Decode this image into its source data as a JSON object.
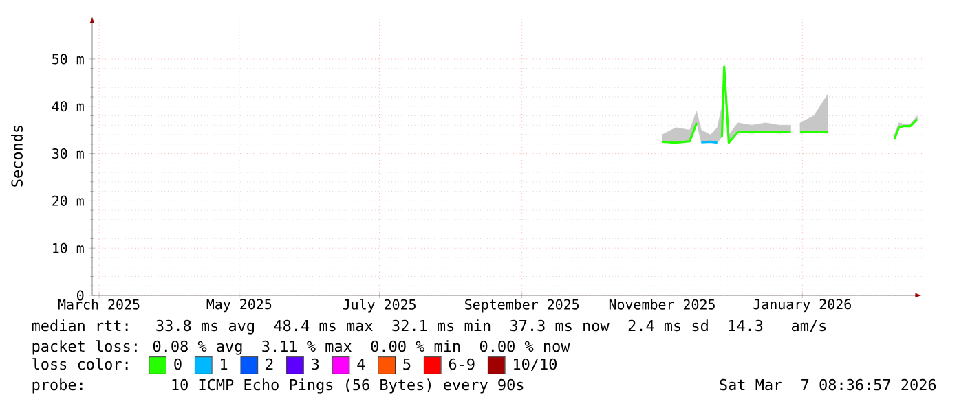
{
  "chart_data": {
    "type": "line",
    "ylabel": "Seconds",
    "x": [
      "2025-11-15",
      "2025-11-21",
      "2025-11-27",
      "2025-11-30",
      "2025-12-02",
      "2025-12-06",
      "2025-12-09",
      "2025-12-11",
      "2025-12-12",
      "2025-12-14",
      "2025-12-18",
      "2025-12-24",
      "2025-12-30",
      "2026-01-05",
      "2026-01-10",
      "2026-01-12",
      "2026-01-14",
      "2026-01-20",
      "2026-01-26",
      "2026-02-10",
      "2026-02-24",
      "2026-02-26",
      "2026-02-28",
      "2026-03-03",
      "2026-03-06"
    ],
    "series": [
      {
        "name": "0",
        "color": "#26ff00",
        "values": [
          32.5,
          32.3,
          32.6,
          36.5,
          null,
          null,
          null,
          33.5,
          48.4,
          32.3,
          34.6,
          34.5,
          34.6,
          34.5,
          34.6,
          null,
          34.5,
          34.6,
          34.5,
          null,
          33.0,
          35.5,
          35.8,
          35.8,
          37.3
        ],
        "lower": [
          32.5,
          32.3,
          32.6,
          36.5,
          32.4,
          32.5,
          32.3,
          33.5,
          48.4,
          32.3,
          34.6,
          34.5,
          34.6,
          34.5,
          34.6,
          null,
          34.5,
          34.6,
          34.5,
          null,
          33.0,
          35.5,
          35.8,
          35.8,
          37.3
        ],
        "upper": [
          34,
          35.5,
          35,
          39,
          35,
          34,
          35.5,
          40,
          48.4,
          34,
          36.5,
          36,
          36.5,
          36,
          36,
          null,
          36.5,
          38,
          42.5,
          null,
          34,
          36.5,
          36.3,
          36.3,
          38
        ]
      },
      {
        "name": "1",
        "color": "#00b8ff",
        "values": [
          null,
          null,
          null,
          null,
          32.4,
          32.5,
          32.3,
          null,
          null,
          null,
          null,
          null,
          null,
          null,
          null,
          null,
          null,
          null,
          null,
          null,
          null,
          null,
          null,
          null,
          null
        ]
      },
      {
        "name": "2",
        "color": "#0059ff",
        "values": [
          null,
          null,
          null,
          null,
          null,
          null,
          null,
          null,
          null,
          null,
          null,
          null,
          null,
          null,
          null,
          null,
          null,
          null,
          null,
          null,
          null,
          null,
          null,
          null,
          null
        ]
      },
      {
        "name": "3",
        "color": "#5e00ff",
        "values": [
          null,
          null,
          null,
          null,
          null,
          null,
          null,
          null,
          null,
          null,
          null,
          null,
          null,
          null,
          null,
          null,
          null,
          null,
          null,
          null,
          null,
          null,
          null,
          null,
          null
        ]
      },
      {
        "name": "4",
        "color": "#ff00ff",
        "values": [
          null,
          null,
          null,
          null,
          null,
          null,
          null,
          null,
          null,
          null,
          null,
          null,
          null,
          null,
          null,
          null,
          null,
          null,
          null,
          null,
          null,
          null,
          null,
          null,
          null
        ]
      },
      {
        "name": "5",
        "color": "#ff5500",
        "values": [
          null,
          null,
          null,
          null,
          null,
          null,
          null,
          null,
          null,
          null,
          null,
          null,
          null,
          null,
          null,
          null,
          null,
          null,
          null,
          null,
          null,
          null,
          null,
          null,
          null
        ]
      },
      {
        "name": "6-9",
        "color": "#ff0000",
        "values": [
          null,
          null,
          null,
          null,
          null,
          null,
          null,
          null,
          null,
          null,
          null,
          null,
          null,
          null,
          null,
          null,
          null,
          null,
          null,
          null,
          null,
          null,
          null,
          null,
          null
        ]
      },
      {
        "name": "10/10",
        "color": "#a10000",
        "values": [
          null,
          null,
          null,
          null,
          null,
          null,
          null,
          null,
          null,
          null,
          null,
          null,
          null,
          null,
          null,
          null,
          null,
          null,
          null,
          null,
          null,
          null,
          null,
          null,
          null
        ]
      }
    ],
    "xlim": [
      "2025-03-12",
      "2026-03-08"
    ],
    "xticks": [
      {
        "value": "2025-03-15",
        "label": "March 2025"
      },
      {
        "value": "2025-05-15",
        "label": "May 2025"
      },
      {
        "value": "2025-07-15",
        "label": "July 2025"
      },
      {
        "value": "2025-09-15",
        "label": "September 2025"
      },
      {
        "value": "2025-11-15",
        "label": "November 2025"
      },
      {
        "value": "2026-01-15",
        "label": "January 2026"
      }
    ],
    "ylim": [
      0,
      59
    ],
    "yticks": [
      0,
      {
        "value": 10,
        "label": "10 m"
      },
      {
        "value": 20,
        "label": "20 m"
      },
      {
        "value": 30,
        "label": "30 m"
      },
      {
        "value": 40,
        "label": "40 m"
      },
      {
        "value": 50,
        "label": "50 m"
      }
    ],
    "grid": true,
    "legend": "bottom left",
    "annotations": [
      "median rtt:  33.8 ms avg  48.4 ms max  32.1 ms min  37.3 ms now  2.4 ms sd  14.3   am/s",
      "packet loss: 0.08 % avg  3.11 % max  0.00 % min  0.00 % now",
      "loss color:",
      "probe:       10 ICMP Echo Pings (56 Bytes) every 90s",
      "Sat Mar  7 08:36:57 2026"
    ]
  }
}
